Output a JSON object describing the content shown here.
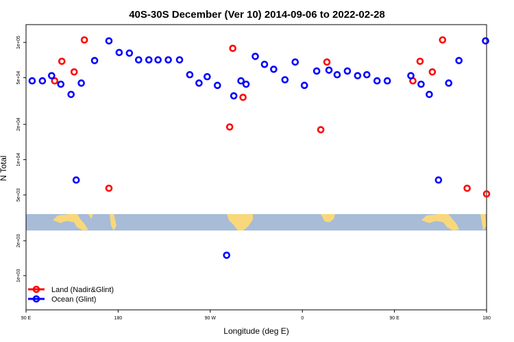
{
  "chart_data": {
    "type": "scatter",
    "title": "40S-30S December (Ver 10)   2014-09-06 to 2022-02-28",
    "xlabel": "Longitude (deg E)",
    "ylabel": "N Total",
    "y_scale": "log",
    "x_ticks": [
      {
        "pos": 90,
        "label": "90 E"
      },
      {
        "pos": 180,
        "label": "180"
      },
      {
        "pos": 270,
        "label": "90 W"
      },
      {
        "pos": 360,
        "label": "0"
      },
      {
        "pos": 450,
        "label": "90 E"
      },
      {
        "pos": 540,
        "label": "180"
      }
    ],
    "y_ticks_upper": [
      {
        "value": 100000,
        "label": "1e+05"
      },
      {
        "value": 50000,
        "label": "5e+04"
      },
      {
        "value": 20000,
        "label": "2e+04"
      },
      {
        "value": 10000,
        "label": "1e+04"
      },
      {
        "value": 5000,
        "label": "5e+03"
      }
    ],
    "y_ticks_lower": [
      {
        "value": 2000,
        "label": "2e+03"
      },
      {
        "value": 1000,
        "label": "1e+03"
      }
    ],
    "series": [
      {
        "name": "Land (Nadir&Glint)",
        "color": "#ff0000",
        "x": [
          118,
          125,
          137,
          147,
          171,
          289,
          292,
          302,
          378,
          384
        ],
        "y": [
          47000,
          69000,
          56000,
          105000,
          5700,
          19000,
          89000,
          34000,
          18000,
          68000
        ],
        "x_wrapped": [
          468,
          475,
          487,
          497,
          521,
          540
        ],
        "y_wrapped": [
          47000,
          69000,
          56000,
          105000,
          5700,
          5100
        ]
      },
      {
        "name": "Ocean (Glint)",
        "color": "#0000ff",
        "x": [
          96,
          106,
          115,
          124,
          134,
          139,
          144,
          157,
          171,
          181,
          191,
          200,
          210,
          219,
          229,
          240,
          250,
          259,
          267,
          277,
          286,
          293,
          300,
          305,
          314,
          323,
          332,
          343,
          353,
          362,
          374,
          386,
          394,
          404,
          414,
          423,
          433,
          443
        ],
        "y": [
          47000,
          47000,
          52000,
          44000,
          36000,
          6700,
          45000,
          70000,
          103000,
          82000,
          81000,
          71000,
          71000,
          71000,
          71000,
          71000,
          53000,
          45000,
          51000,
          43000,
          1500,
          35000,
          47000,
          44000,
          76000,
          65000,
          59000,
          48000,
          68000,
          43000,
          57000,
          58000,
          53000,
          57000,
          52000,
          53000,
          47000,
          47000
        ],
        "x_wrapped": [
          466,
          476,
          484,
          493,
          503,
          513,
          539
        ],
        "y_wrapped": [
          52000,
          44000,
          36000,
          6700,
          45000,
          70000,
          103000
        ]
      }
    ],
    "legend": {
      "position": "bottom-left",
      "entries": [
        "Land (Nadir&Glint)",
        "Ocean (Glint)"
      ]
    },
    "map_strip": "world longitude strip 40S-30S (ocean with land masses)"
  }
}
